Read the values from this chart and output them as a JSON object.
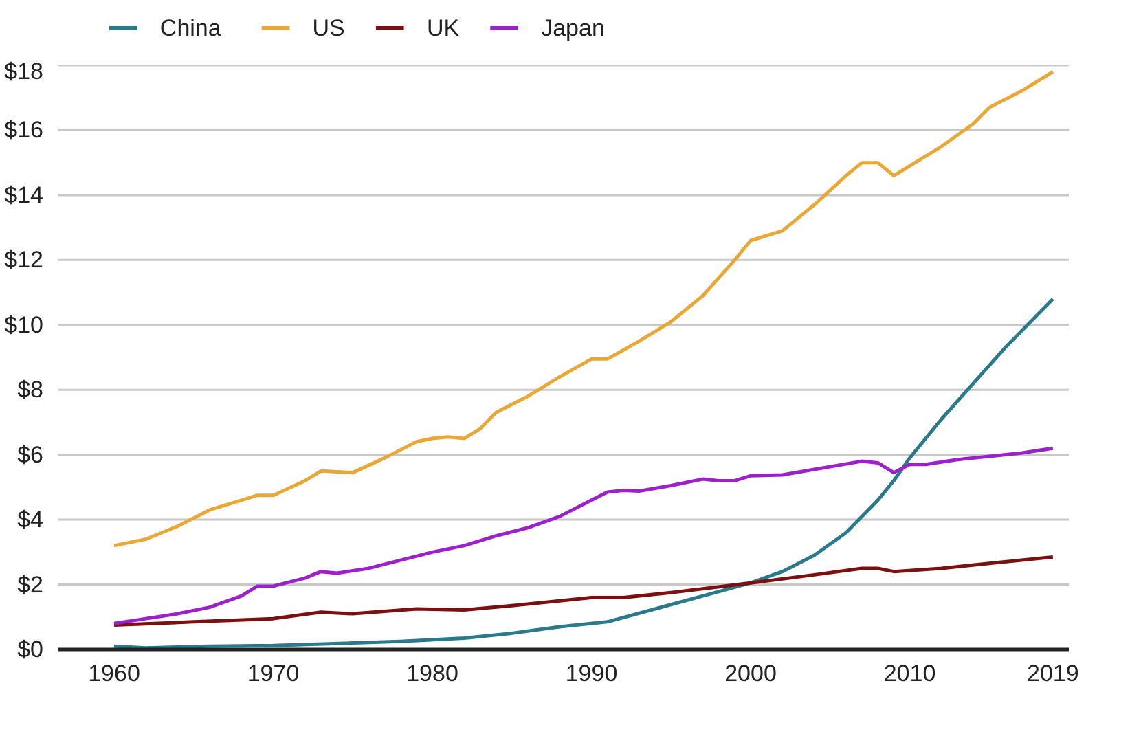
{
  "chart_data": {
    "type": "line",
    "xlim": [
      1956.5,
      2020
    ],
    "ylim": [
      0,
      18
    ],
    "xticks": [
      1960,
      1970,
      1980,
      1990,
      2000,
      2010,
      2019
    ],
    "yticks": [
      {
        "value": 0,
        "label": "$0"
      },
      {
        "value": 2,
        "label": "$2"
      },
      {
        "value": 4,
        "label": "$4"
      },
      {
        "value": 6,
        "label": "$6"
      },
      {
        "value": 8,
        "label": "$8"
      },
      {
        "value": 10,
        "label": "$10"
      },
      {
        "value": 12,
        "label": "$12"
      },
      {
        "value": 14,
        "label": "$14"
      },
      {
        "value": 16,
        "label": "$16"
      },
      {
        "value": 18,
        "label": "$18"
      }
    ],
    "grid": "y",
    "legend": "top left",
    "line_style": "solid",
    "series": [
      {
        "name": "China",
        "color": "#2a7a8c",
        "x": [
          1960,
          1962,
          1966,
          1970,
          1975,
          1978,
          1982,
          1985,
          1988,
          1991,
          1994,
          1997,
          2000,
          2002,
          2004,
          2006,
          2008,
          2009,
          2010,
          2012,
          2014,
          2016,
          2019
        ],
        "values": [
          0.1,
          0.05,
          0.1,
          0.12,
          0.2,
          0.25,
          0.35,
          0.5,
          0.7,
          0.85,
          1.25,
          1.65,
          2.05,
          2.4,
          2.9,
          3.6,
          4.6,
          5.2,
          5.9,
          7.1,
          8.2,
          9.3,
          10.8
        ]
      },
      {
        "name": "US",
        "color": "#e8a838",
        "x": [
          1960,
          1962,
          1964,
          1966,
          1968,
          1969,
          1970,
          1972,
          1973,
          1975,
          1977,
          1979,
          1980,
          1981,
          1982,
          1983,
          1984,
          1986,
          1988,
          1990,
          1991,
          1993,
          1995,
          1997,
          1999,
          2000,
          2002,
          2004,
          2006,
          2007,
          2008,
          2009,
          2010,
          2012,
          2014,
          2015,
          2017,
          2019
        ],
        "values": [
          3.2,
          3.4,
          3.8,
          4.3,
          4.6,
          4.75,
          4.75,
          5.2,
          5.5,
          5.45,
          5.9,
          6.4,
          6.5,
          6.55,
          6.5,
          6.8,
          7.3,
          7.8,
          8.4,
          8.95,
          8.95,
          9.5,
          10.1,
          10.9,
          12.0,
          12.6,
          12.9,
          13.7,
          14.6,
          15.0,
          15.0,
          14.6,
          14.9,
          15.5,
          16.2,
          16.7,
          17.2,
          17.8
        ]
      },
      {
        "name": "UK",
        "color": "#7a1010",
        "x": [
          1960,
          1965,
          1970,
          1973,
          1975,
          1979,
          1982,
          1985,
          1988,
          1990,
          1992,
          1995,
          2000,
          2004,
          2007,
          2008,
          2009,
          2012,
          2015,
          2019
        ],
        "values": [
          0.75,
          0.85,
          0.95,
          1.15,
          1.1,
          1.25,
          1.22,
          1.35,
          1.5,
          1.6,
          1.6,
          1.75,
          2.05,
          2.3,
          2.5,
          2.5,
          2.4,
          2.5,
          2.65,
          2.85
        ]
      },
      {
        "name": "Japan",
        "color": "#9b22c8",
        "x": [
          1960,
          1962,
          1964,
          1966,
          1968,
          1969,
          1970,
          1972,
          1973,
          1974,
          1976,
          1978,
          1980,
          1982,
          1984,
          1986,
          1988,
          1990,
          1991,
          1992,
          1993,
          1995,
          1997,
          1998,
          1999,
          2000,
          2002,
          2004,
          2007,
          2008,
          2009,
          2010,
          2011,
          2013,
          2015,
          2017,
          2019
        ],
        "values": [
          0.8,
          0.95,
          1.1,
          1.3,
          1.65,
          1.95,
          1.95,
          2.2,
          2.4,
          2.35,
          2.5,
          2.75,
          3.0,
          3.2,
          3.5,
          3.75,
          4.1,
          4.6,
          4.85,
          4.9,
          4.88,
          5.05,
          5.25,
          5.2,
          5.2,
          5.35,
          5.38,
          5.55,
          5.8,
          5.75,
          5.45,
          5.7,
          5.7,
          5.85,
          5.95,
          6.05,
          6.2
        ]
      }
    ]
  }
}
